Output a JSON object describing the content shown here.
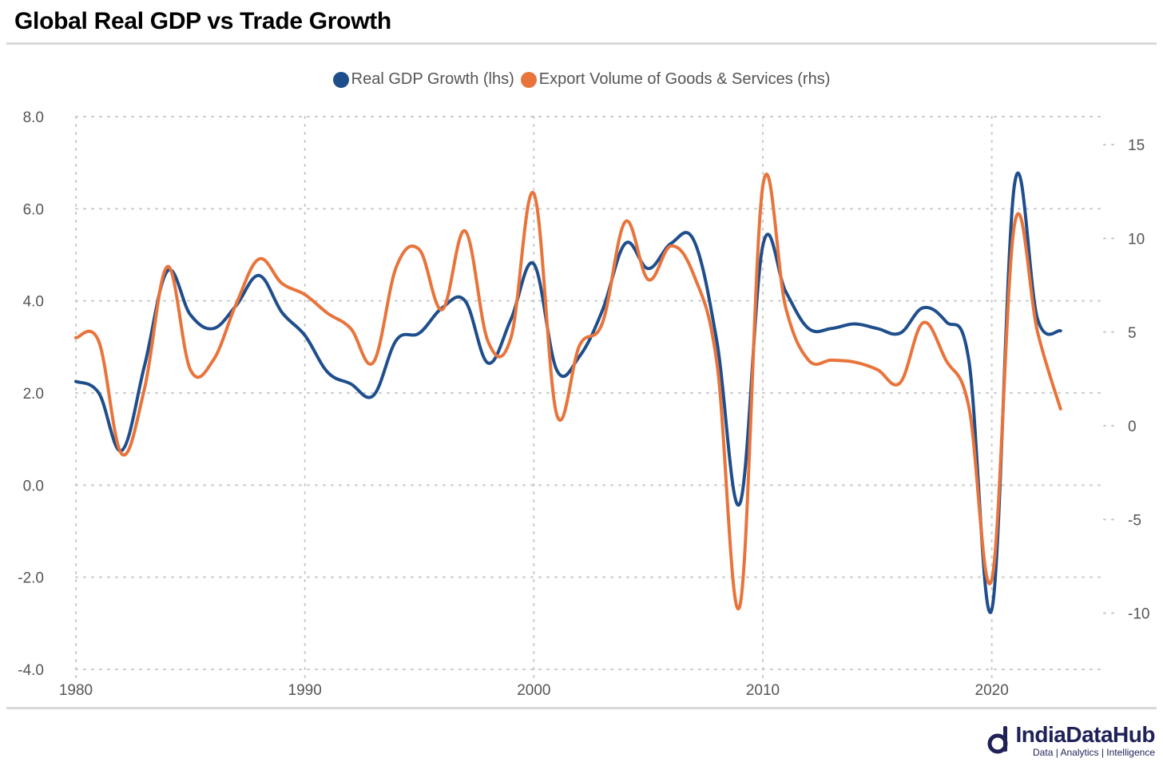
{
  "title": "Global Real GDP vs Trade Growth",
  "legend": {
    "series1": "Real GDP Growth (lhs)",
    "series2": "Export Volume of Goods & Services (rhs)"
  },
  "brand": {
    "name": "IndiaDataHub",
    "tagline": "Data | Analytics | Intelligence",
    "color": "#1f2158"
  },
  "chart_data": {
    "type": "line",
    "x": [
      1980,
      1981,
      1982,
      1983,
      1984,
      1985,
      1986,
      1987,
      1988,
      1989,
      1990,
      1991,
      1992,
      1993,
      1994,
      1995,
      1996,
      1997,
      1998,
      1999,
      2000,
      2001,
      2002,
      2003,
      2004,
      2005,
      2006,
      2007,
      2008,
      2009,
      2010,
      2011,
      2012,
      2013,
      2014,
      2015,
      2016,
      2017,
      2018,
      2019,
      2020,
      2021,
      2022,
      2023
    ],
    "xlim": [
      1980,
      2025
    ],
    "x_ticks": [
      "1980",
      "1990",
      "2000",
      "2010",
      "2020"
    ],
    "series": [
      {
        "name": "Real GDP Growth (lhs)",
        "axis": "left",
        "color": "#1f4e8c",
        "values": [
          2.25,
          2.0,
          0.75,
          2.6,
          4.65,
          3.7,
          3.4,
          3.9,
          4.55,
          3.75,
          3.25,
          2.45,
          2.2,
          1.95,
          3.15,
          3.3,
          3.85,
          4.0,
          2.65,
          3.6,
          4.8,
          2.5,
          2.8,
          3.8,
          5.25,
          4.7,
          5.25,
          5.3,
          3.1,
          -0.4,
          5.2,
          4.2,
          3.4,
          3.4,
          3.5,
          3.4,
          3.3,
          3.85,
          3.55,
          2.7,
          -2.7,
          6.55,
          3.6,
          3.35
        ]
      },
      {
        "name": "Export Volume of Goods & Services (rhs)",
        "axis": "right",
        "color": "#e8743b",
        "values": [
          4.7,
          4.5,
          -1.5,
          2.0,
          8.5,
          3.0,
          3.5,
          6.5,
          8.9,
          7.6,
          7.0,
          6.0,
          5.2,
          3.4,
          8.5,
          9.4,
          6.2,
          10.4,
          4.5,
          4.7,
          12.4,
          0.6,
          4.3,
          5.5,
          10.9,
          7.8,
          9.6,
          8.0,
          3.3,
          -9.6,
          12.8,
          6.3,
          3.5,
          3.5,
          3.4,
          3.0,
          2.3,
          5.5,
          3.5,
          1.0,
          -8.2,
          10.8,
          5.0,
          0.9
        ]
      }
    ],
    "y_left": {
      "ylim": [
        -4,
        8
      ],
      "ticks": [
        "8.0",
        "6.0",
        "4.0",
        "2.0",
        "0.0",
        "-2.0",
        "-4.0"
      ]
    },
    "y_right": {
      "ylim": [
        -13,
        16.5
      ],
      "ticks": [
        "15",
        "10",
        "5",
        "0",
        "-5",
        "-10"
      ]
    },
    "grid": true,
    "legend_position": "top-center"
  }
}
